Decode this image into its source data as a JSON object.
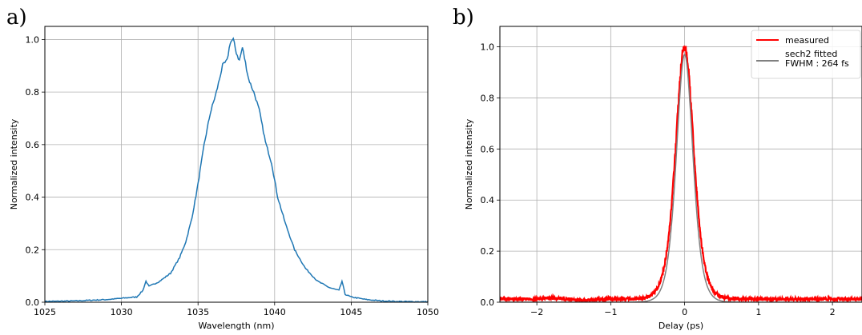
{
  "chart_data": [
    {
      "panel": "a)",
      "type": "line",
      "xlabel": "Wavelength (nm)",
      "ylabel": "Normalized intensity",
      "xlim": [
        1025,
        1050
      ],
      "ylim": [
        0,
        1.05
      ],
      "xticks": [
        1025,
        1030,
        1035,
        1040,
        1045,
        1050
      ],
      "xtick_labels": [
        "1025",
        "1030",
        "1035",
        "1040",
        "1045",
        "1050"
      ],
      "yticks": [
        0,
        0.2,
        0.4,
        0.6,
        0.8,
        1.0
      ],
      "ytick_labels": [
        "0.0",
        "0.2",
        "0.4",
        "0.6",
        "0.8",
        "1.0"
      ],
      "grid": true,
      "series": [
        {
          "color": "#1f77b4",
          "x": [
            1025,
            1027,
            1029,
            1030,
            1031,
            1031.4,
            1031.6,
            1031.8,
            1032.5,
            1033.2,
            1033.8,
            1034.2,
            1034.6,
            1035.0,
            1035.4,
            1035.8,
            1036.2,
            1036.6,
            1036.9,
            1037.1,
            1037.3,
            1037.5,
            1037.7,
            1037.9,
            1038.3,
            1038.7,
            1039.0,
            1039.4,
            1039.8,
            1040.2,
            1040.7,
            1041.3,
            1042.0,
            1042.8,
            1043.6,
            1044.2,
            1044.4,
            1044.6,
            1045.0,
            1046,
            1047,
            1048,
            1049,
            1050
          ],
          "y": [
            0.003,
            0.005,
            0.01,
            0.015,
            0.02,
            0.045,
            0.08,
            0.06,
            0.08,
            0.11,
            0.17,
            0.23,
            0.32,
            0.45,
            0.6,
            0.72,
            0.8,
            0.9,
            0.92,
            0.99,
            1.0,
            0.95,
            0.92,
            0.97,
            0.85,
            0.79,
            0.73,
            0.61,
            0.53,
            0.4,
            0.3,
            0.2,
            0.13,
            0.08,
            0.055,
            0.045,
            0.08,
            0.03,
            0.02,
            0.01,
            0.005,
            0.003,
            0.002,
            0.002
          ]
        }
      ]
    },
    {
      "panel": "b)",
      "type": "line",
      "xlabel": "Delay (ps)",
      "ylabel": "Normalized intensity",
      "xlim": [
        -2.5,
        2.4
      ],
      "ylim": [
        0,
        1.08
      ],
      "xticks": [
        -2,
        -1,
        0,
        1,
        2
      ],
      "xtick_labels": [
        "−2",
        "−1",
        "0",
        "1",
        "2"
      ],
      "yticks": [
        0,
        0.2,
        0.4,
        0.6,
        0.8,
        1.0
      ],
      "ytick_labels": [
        "0.0",
        "0.2",
        "0.4",
        "0.6",
        "0.8",
        "1.0"
      ],
      "grid": true,
      "legend_position": "top-right",
      "legend_entries": [
        "measured",
        "sech2 fitted\nFWHM : 264 fs"
      ],
      "series": [
        {
          "name": "measured",
          "color": "#ff0000",
          "model": "sech2",
          "fwhm_ps": 0.29,
          "baseline": 0.012,
          "noise": 0.012
        },
        {
          "name": "sech2 fitted\nFWHM : 264 fs",
          "color": "#808080",
          "model": "sech2",
          "fwhm_ps": 0.264,
          "baseline": 0.0
        }
      ]
    }
  ]
}
